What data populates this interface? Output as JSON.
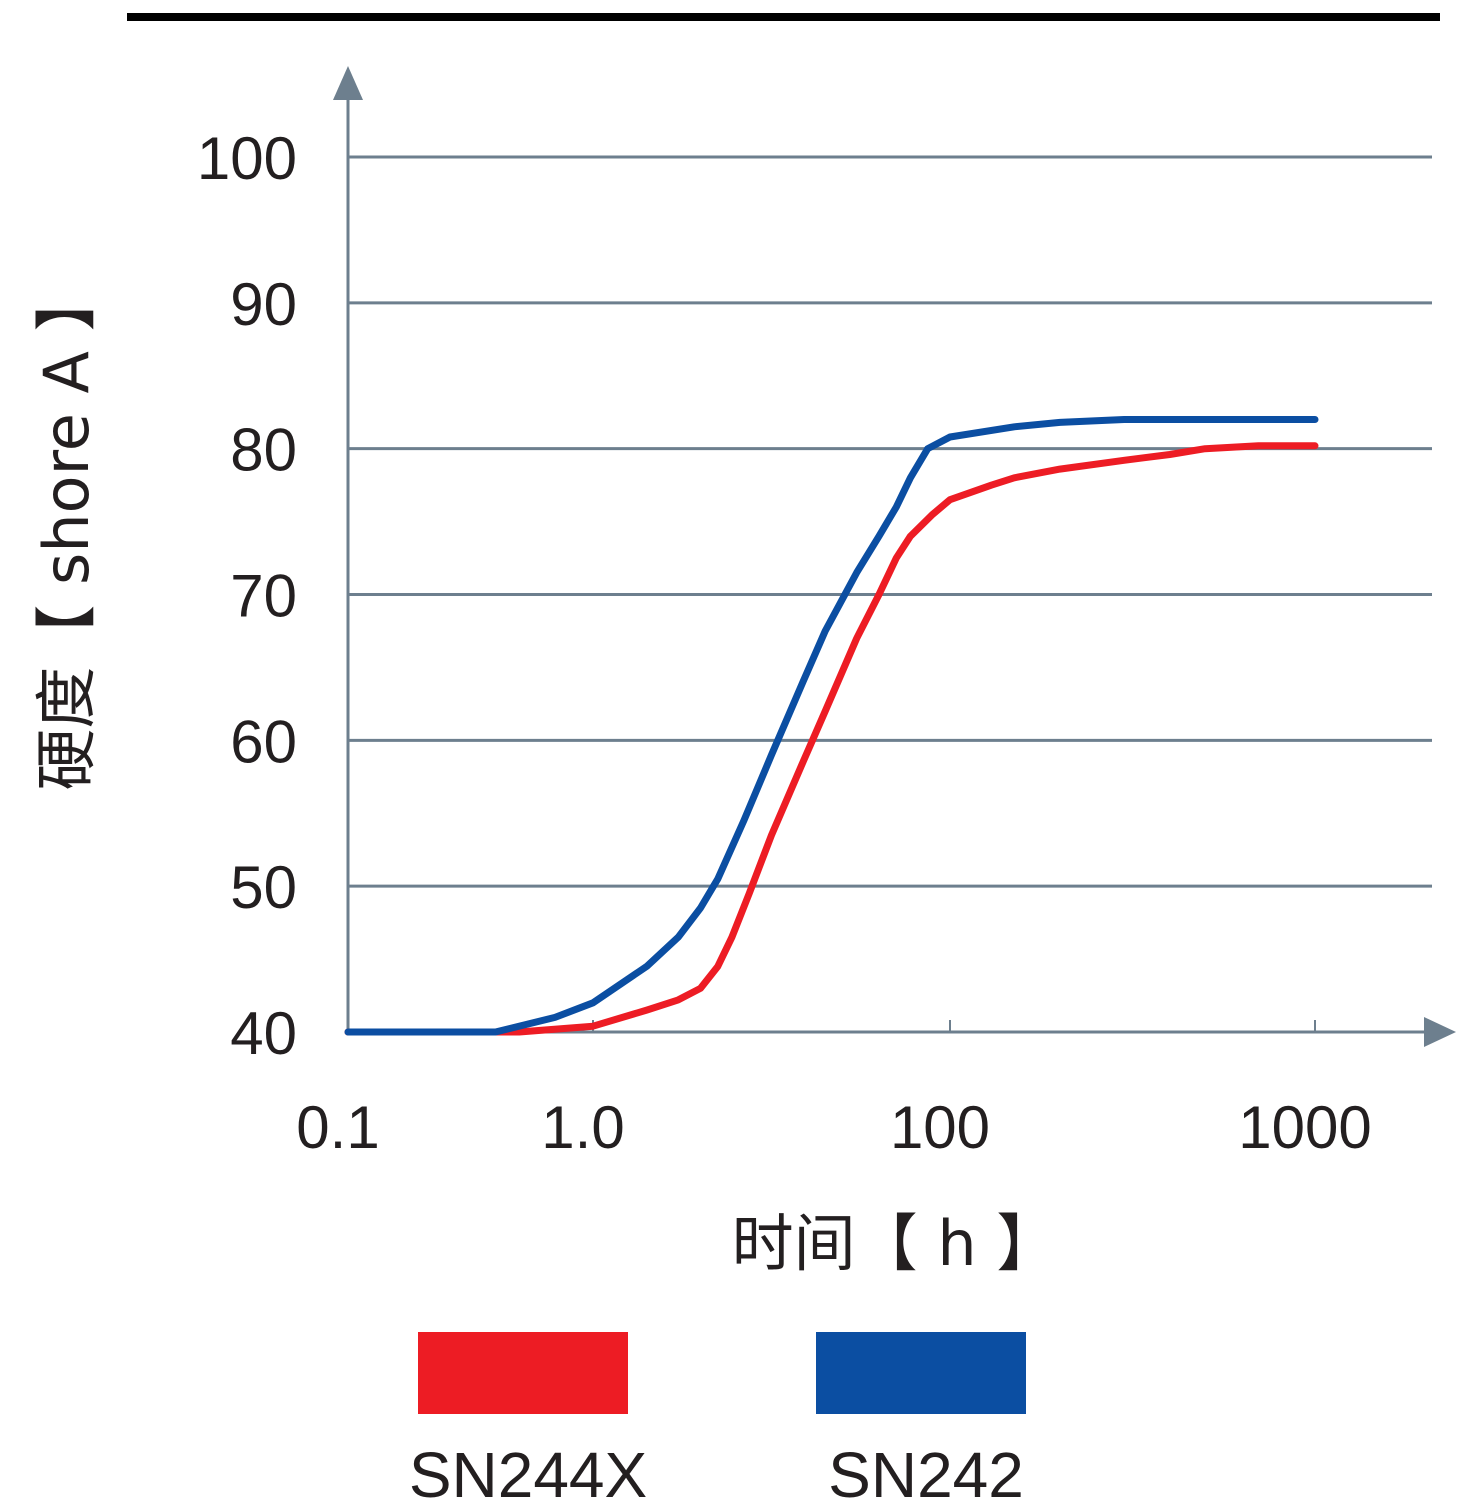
{
  "chart_data": {
    "type": "line",
    "title": "",
    "xlabel": "时间【 h 】",
    "ylabel": "硬度【 shore A 】",
    "x_scale": "log",
    "x_ticks": [
      "0.1",
      "1.0",
      "100",
      "1000"
    ],
    "y_ticks": [
      40,
      50,
      60,
      70,
      80,
      90,
      100
    ],
    "ylim": [
      40,
      100
    ],
    "grid": "horizontal",
    "legend_position": "bottom",
    "series": [
      {
        "name": "SN244X",
        "color": "#ed1c24",
        "points": [
          [
            0.1,
            40
          ],
          [
            0.5,
            40
          ],
          [
            1.0,
            40.4
          ],
          [
            2.0,
            41.5
          ],
          [
            3.0,
            42.2
          ],
          [
            4.0,
            43.0
          ],
          [
            5.0,
            44.5
          ],
          [
            6.0,
            46.5
          ],
          [
            7.5,
            49.5
          ],
          [
            10,
            53.5
          ],
          [
            15,
            58.5
          ],
          [
            20,
            62
          ],
          [
            30,
            67
          ],
          [
            40,
            70
          ],
          [
            50,
            72.5
          ],
          [
            60,
            74
          ],
          [
            80,
            75.5
          ],
          [
            100,
            76.5
          ],
          [
            130,
            77.5
          ],
          [
            150,
            78
          ],
          [
            200,
            78.6
          ],
          [
            300,
            79.2
          ],
          [
            400,
            79.6
          ],
          [
            500,
            80.0
          ],
          [
            700,
            80.2
          ],
          [
            1000,
            80.2
          ]
        ]
      },
      {
        "name": "SN242",
        "color": "#0b4ea2",
        "points": [
          [
            0.1,
            40
          ],
          [
            0.4,
            40
          ],
          [
            0.7,
            41.0
          ],
          [
            1.0,
            42.0
          ],
          [
            2.0,
            44.5
          ],
          [
            3.0,
            46.5
          ],
          [
            4.0,
            48.5
          ],
          [
            5.0,
            50.5
          ],
          [
            7.0,
            54.5
          ],
          [
            10,
            59
          ],
          [
            15,
            64
          ],
          [
            20,
            67.5
          ],
          [
            30,
            71.5
          ],
          [
            40,
            74
          ],
          [
            50,
            76
          ],
          [
            60,
            78
          ],
          [
            75,
            80.0
          ],
          [
            100,
            80.8
          ],
          [
            150,
            81.5
          ],
          [
            200,
            81.8
          ],
          [
            300,
            82.0
          ],
          [
            500,
            82.0
          ],
          [
            1000,
            82.0
          ]
        ]
      }
    ]
  }
}
